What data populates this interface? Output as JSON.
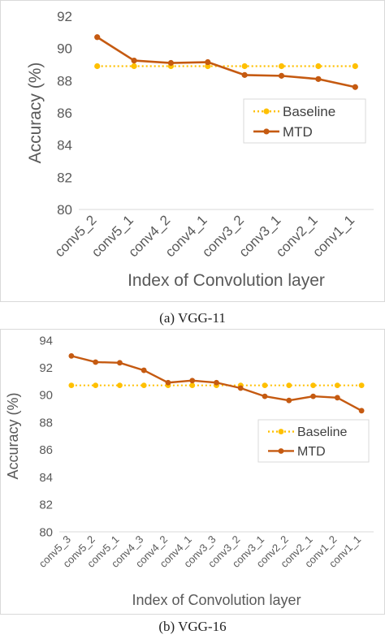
{
  "chart_data": [
    {
      "type": "line",
      "caption": "(a)  VGG-11",
      "xlabel": "Index of Convolution layer",
      "ylabel": "Accuracy (%)",
      "ylim": [
        80,
        92
      ],
      "yticks": [
        80,
        82,
        84,
        86,
        88,
        90,
        92
      ],
      "categories": [
        "conv5_2",
        "conv5_1",
        "conv4_2",
        "conv4_1",
        "conv3_2",
        "conv3_1",
        "conv2_1",
        "conv1_1"
      ],
      "grid": false,
      "legend_position": "right",
      "series": [
        {
          "name": "Baseline",
          "color": "#ffc000",
          "style": "dotted",
          "values": [
            88.9,
            88.9,
            88.9,
            88.9,
            88.9,
            88.9,
            88.9,
            88.9
          ]
        },
        {
          "name": "MTD",
          "color": "#c55a11",
          "style": "solid",
          "values": [
            90.7,
            89.25,
            89.1,
            89.15,
            88.35,
            88.3,
            88.1,
            87.6
          ]
        }
      ]
    },
    {
      "type": "line",
      "caption": "(b)  VGG-16",
      "xlabel": "Index of Convolution layer",
      "ylabel": "Accuracy (%)",
      "ylim": [
        80,
        94
      ],
      "yticks": [
        80,
        82,
        84,
        86,
        88,
        90,
        92,
        94
      ],
      "categories": [
        "conv5_3",
        "conv5_2",
        "conv5_1",
        "conv4_3",
        "conv4_2",
        "conv4_1",
        "conv3_3",
        "conv3_2",
        "conv3_1",
        "conv2_2",
        "conv2_1",
        "conv1_2",
        "conv1_1"
      ],
      "grid": false,
      "legend_position": "right",
      "series": [
        {
          "name": "Baseline",
          "color": "#ffc000",
          "style": "dotted",
          "values": [
            90.7,
            90.7,
            90.7,
            90.7,
            90.7,
            90.7,
            90.7,
            90.7,
            90.7,
            90.7,
            90.7,
            90.7,
            90.7
          ]
        },
        {
          "name": "MTD",
          "color": "#c55a11",
          "style": "solid",
          "values": [
            92.85,
            92.4,
            92.35,
            91.8,
            90.9,
            91.05,
            90.9,
            90.5,
            89.9,
            89.6,
            89.9,
            89.8,
            88.85
          ]
        }
      ]
    }
  ]
}
